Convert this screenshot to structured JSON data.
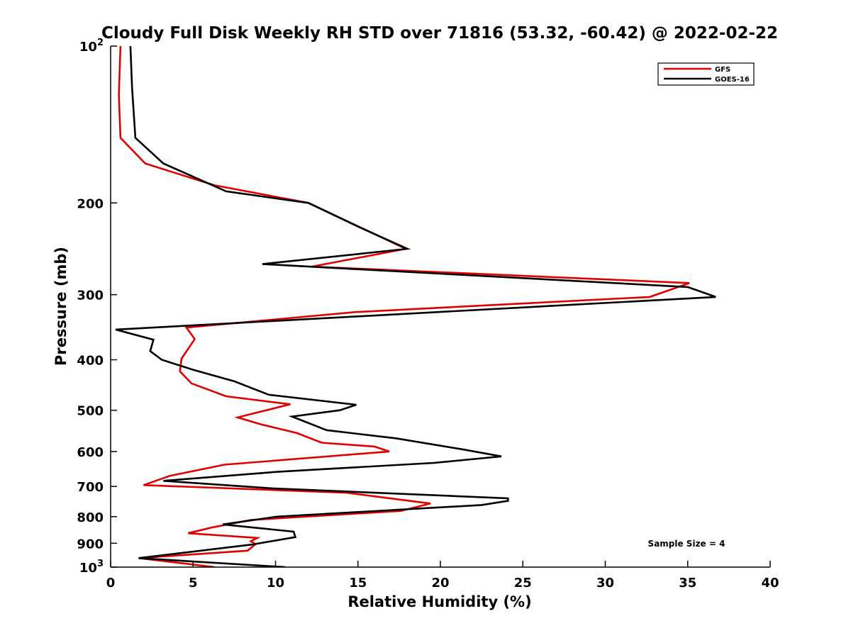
{
  "chart_data": {
    "type": "line",
    "title": "Cloudy Full Disk Weekly RH STD over 71816 (53.32, -60.42) @ 2022-02-22",
    "xlabel": "Relative Humidity (%)",
    "ylabel": "Pressure (mb)",
    "xlim": [
      0,
      40
    ],
    "ylim": [
      100,
      1000
    ],
    "y_scale": "log",
    "y_reversed": true,
    "grid": false,
    "legend_position": "top-right",
    "x_ticks": [
      0,
      5,
      10,
      15,
      20,
      25,
      30,
      35,
      40
    ],
    "x_tick_labels": [
      "0",
      "5",
      "10",
      "15",
      "20",
      "25",
      "30",
      "35",
      "40"
    ],
    "y_ticks": [
      {
        "value": 100,
        "base": "10",
        "exp": "2"
      },
      {
        "value": 200,
        "base": "200",
        "exp": ""
      },
      {
        "value": 300,
        "base": "300",
        "exp": ""
      },
      {
        "value": 400,
        "base": "400",
        "exp": ""
      },
      {
        "value": 500,
        "base": "500",
        "exp": ""
      },
      {
        "value": 600,
        "base": "600",
        "exp": ""
      },
      {
        "value": 700,
        "base": "700",
        "exp": ""
      },
      {
        "value": 800,
        "base": "800",
        "exp": ""
      },
      {
        "value": 900,
        "base": "900",
        "exp": ""
      },
      {
        "value": 1000,
        "base": "10",
        "exp": "3"
      }
    ],
    "annotation": "Sample Size = 4",
    "series": [
      {
        "name": "GFS",
        "color": "#e00000",
        "x": [
          0.6,
          0.5,
          0.6,
          2.1,
          6.3,
          12.0,
          17.9,
          12.2,
          35.1,
          32.7,
          14.8,
          4.6,
          5.1,
          4.3,
          4.2,
          4.9,
          7.0,
          10.9,
          7.7,
          9.1,
          11.3,
          12.8,
          16.0,
          16.9,
          6.9,
          3.6,
          2.0,
          14.3,
          19.4,
          17.6,
          8.5,
          6.1,
          4.7,
          8.9,
          8.5,
          8.8,
          8.3,
          1.7,
          6.3,
          5.9
        ],
        "y": [
          100,
          124,
          150,
          168,
          185,
          200,
          245,
          265,
          285,
          303,
          324,
          347,
          365,
          398,
          421,
          444,
          470,
          487,
          516,
          532,
          553,
          577,
          587,
          600,
          636,
          668,
          696,
          720,
          755,
          780,
          812,
          840,
          861,
          879,
          892,
          903,
          930,
          961,
          1000,
          1010
        ]
      },
      {
        "name": "GOES-16",
        "color": "#000000",
        "x": [
          1.2,
          1.3,
          1.5,
          3.2,
          7.0,
          12.0,
          15.0,
          18.0,
          9.2,
          35.0,
          36.7,
          0.3,
          2.6,
          2.4,
          3.1,
          5.0,
          7.5,
          9.6,
          14.9,
          13.9,
          11.0,
          13.1,
          17.3,
          21.3,
          23.7,
          19.6,
          10.2,
          3.2,
          9.8,
          24.1,
          24.1,
          22.5,
          10.1,
          6.8,
          11.1,
          11.2,
          8.6,
          1.7,
          10.6,
          3.7
        ],
        "y": [
          100,
          120,
          150,
          168,
          190,
          200,
          222,
          245,
          262,
          290,
          303,
          350,
          366,
          385,
          400,
          418,
          440,
          467,
          488,
          500,
          514,
          546,
          566,
          594,
          613,
          631,
          656,
          683,
          706,
          738,
          746,
          760,
          800,
          828,
          855,
          876,
          905,
          961,
          1000,
          1010
        ]
      }
    ]
  }
}
